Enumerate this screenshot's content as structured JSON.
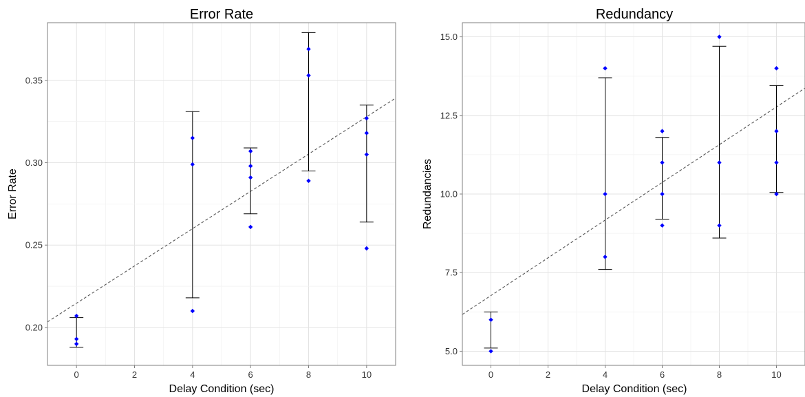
{
  "chart_data": [
    {
      "type": "scatter",
      "title": "Error Rate",
      "xlabel": "Delay Condition (sec)",
      "ylabel": "Error Rate",
      "xlim": [
        -1,
        11
      ],
      "ylim": [
        0.177,
        0.385
      ],
      "xticks": [
        0,
        2,
        4,
        6,
        8,
        10
      ],
      "xtick_labels": [
        "0",
        "2",
        "4",
        "6",
        "8",
        "10"
      ],
      "yticks": [
        0.2,
        0.25,
        0.3,
        0.35
      ],
      "ytick_labels": [
        "0.20",
        "0.25",
        "0.30",
        "0.35"
      ],
      "grid": true,
      "points": [
        {
          "x": 0,
          "y": 0.207
        },
        {
          "x": 0,
          "y": 0.193
        },
        {
          "x": 0,
          "y": 0.19
        },
        {
          "x": 4,
          "y": 0.315
        },
        {
          "x": 4,
          "y": 0.299
        },
        {
          "x": 4,
          "y": 0.21
        },
        {
          "x": 6,
          "y": 0.307
        },
        {
          "x": 6,
          "y": 0.298
        },
        {
          "x": 6,
          "y": 0.291
        },
        {
          "x": 6,
          "y": 0.261
        },
        {
          "x": 8,
          "y": 0.369
        },
        {
          "x": 8,
          "y": 0.353
        },
        {
          "x": 8,
          "y": 0.289
        },
        {
          "x": 10,
          "y": 0.327
        },
        {
          "x": 10,
          "y": 0.318
        },
        {
          "x": 10,
          "y": 0.305
        },
        {
          "x": 10,
          "y": 0.248
        }
      ],
      "error_bars": [
        {
          "x": 0,
          "low": 0.188,
          "high": 0.206
        },
        {
          "x": 4,
          "low": 0.218,
          "high": 0.331
        },
        {
          "x": 6,
          "low": 0.269,
          "high": 0.309
        },
        {
          "x": 8,
          "low": 0.295,
          "high": 0.379
        },
        {
          "x": 10,
          "low": 0.264,
          "high": 0.335
        }
      ],
      "trend_line": {
        "intercept": 0.2147,
        "slope": 0.01132
      },
      "point_color": "#0000ff",
      "trend_color": "#555555"
    },
    {
      "type": "scatter",
      "title": "Redundancy",
      "xlabel": "Delay Condition (sec)",
      "ylabel": "Redundancies",
      "xlim": [
        -1,
        11
      ],
      "ylim": [
        4.55,
        15.45
      ],
      "xticks": [
        0,
        2,
        4,
        6,
        8,
        10
      ],
      "xtick_labels": [
        "0",
        "2",
        "4",
        "6",
        "8",
        "10"
      ],
      "yticks": [
        5,
        7.5,
        10,
        12.5,
        15
      ],
      "ytick_labels": [
        "5.0",
        "7.5",
        "10.0",
        "12.5",
        "15.0"
      ],
      "grid": true,
      "points": [
        {
          "x": 0,
          "y": 6
        },
        {
          "x": 0,
          "y": 5
        },
        {
          "x": 4,
          "y": 14
        },
        {
          "x": 4,
          "y": 10
        },
        {
          "x": 4,
          "y": 8
        },
        {
          "x": 6,
          "y": 12
        },
        {
          "x": 6,
          "y": 11
        },
        {
          "x": 6,
          "y": 10
        },
        {
          "x": 6,
          "y": 9
        },
        {
          "x": 8,
          "y": 15
        },
        {
          "x": 8,
          "y": 11
        },
        {
          "x": 8,
          "y": 9
        },
        {
          "x": 10,
          "y": 14
        },
        {
          "x": 10,
          "y": 12
        },
        {
          "x": 10,
          "y": 11
        },
        {
          "x": 10,
          "y": 10
        }
      ],
      "error_bars": [
        {
          "x": 0,
          "low": 5.1,
          "high": 6.25
        },
        {
          "x": 4,
          "low": 7.6,
          "high": 13.7
        },
        {
          "x": 6,
          "low": 9.2,
          "high": 11.8
        },
        {
          "x": 8,
          "low": 8.6,
          "high": 14.7
        },
        {
          "x": 10,
          "low": 10.05,
          "high": 13.45
        }
      ],
      "trend_line": {
        "intercept": 6.77,
        "slope": 0.6
      },
      "point_color": "#0000ff",
      "trend_color": "#555555"
    }
  ]
}
